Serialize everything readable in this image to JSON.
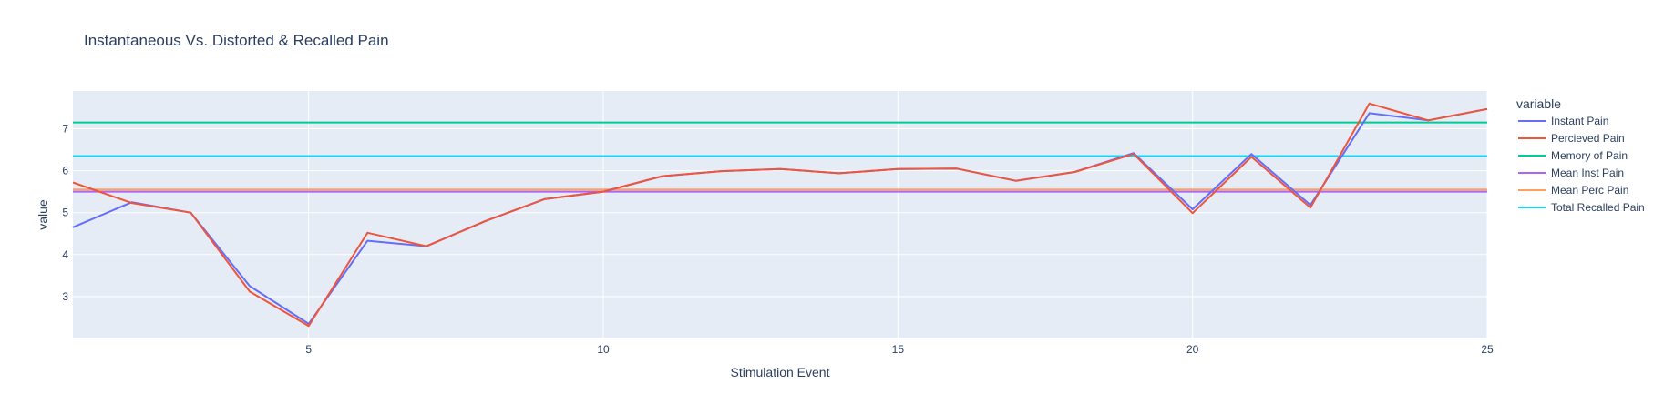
{
  "chart_data": {
    "type": "line",
    "title": "Instantaneous Vs. Distorted & Recalled Pain",
    "xlabel": "Stimulation Event",
    "ylabel": "value",
    "xlim": [
      1,
      25
    ],
    "ylim": [
      2,
      7.9
    ],
    "x_ticks": [
      5,
      10,
      15,
      20,
      25
    ],
    "y_ticks": [
      3,
      4,
      5,
      6,
      7
    ],
    "grid": true,
    "legend_title": "variable",
    "legend_position": "right",
    "x": [
      1,
      2,
      3,
      4,
      5,
      6,
      7,
      8,
      9,
      10,
      11,
      12,
      13,
      14,
      15,
      16,
      17,
      18,
      19,
      20,
      21,
      22,
      23,
      24,
      25
    ],
    "series": [
      {
        "name": "Instant Pain",
        "color": "#636efa",
        "values": [
          4.65,
          5.25,
          5.0,
          3.25,
          2.35,
          4.33,
          4.2,
          4.8,
          5.32,
          5.5,
          5.87,
          5.99,
          6.04,
          5.94,
          6.04,
          6.05,
          5.76,
          5.97,
          6.42,
          5.08,
          6.4,
          5.18,
          7.37,
          7.2,
          7.47
        ]
      },
      {
        "name": "Percieved Pain",
        "color": "#ef553b",
        "values": [
          5.72,
          5.23,
          5.0,
          3.12,
          2.3,
          4.52,
          4.2,
          4.8,
          5.32,
          5.5,
          5.87,
          5.99,
          6.04,
          5.94,
          6.04,
          6.05,
          5.76,
          5.97,
          6.4,
          4.99,
          6.33,
          5.12,
          7.6,
          7.2,
          7.47
        ]
      },
      {
        "name": "Memory of Pain",
        "color": "#00cc96",
        "values": [
          7.15,
          7.15,
          7.15,
          7.15,
          7.15,
          7.15,
          7.15,
          7.15,
          7.15,
          7.15,
          7.15,
          7.15,
          7.15,
          7.15,
          7.15,
          7.15,
          7.15,
          7.15,
          7.15,
          7.15,
          7.15,
          7.15,
          7.15,
          7.15,
          7.15
        ]
      },
      {
        "name": "Mean Inst Pain",
        "color": "#ab63fa",
        "values": [
          5.5,
          5.5,
          5.5,
          5.5,
          5.5,
          5.5,
          5.5,
          5.5,
          5.5,
          5.5,
          5.5,
          5.5,
          5.5,
          5.5,
          5.5,
          5.5,
          5.5,
          5.5,
          5.5,
          5.5,
          5.5,
          5.5,
          5.5,
          5.5,
          5.5
        ]
      },
      {
        "name": "Mean Perc Pain",
        "color": "#ffa15a",
        "values": [
          5.55,
          5.55,
          5.55,
          5.55,
          5.55,
          5.55,
          5.55,
          5.55,
          5.55,
          5.55,
          5.55,
          5.55,
          5.55,
          5.55,
          5.55,
          5.55,
          5.55,
          5.55,
          5.55,
          5.55,
          5.55,
          5.55,
          5.55,
          5.55,
          5.55
        ]
      },
      {
        "name": "Total Recalled Pain",
        "color": "#19d3f3",
        "values": [
          6.35,
          6.35,
          6.35,
          6.35,
          6.35,
          6.35,
          6.35,
          6.35,
          6.35,
          6.35,
          6.35,
          6.35,
          6.35,
          6.35,
          6.35,
          6.35,
          6.35,
          6.35,
          6.35,
          6.35,
          6.35,
          6.35,
          6.35,
          6.35,
          6.35
        ]
      }
    ],
    "colors": {
      "plot_background": "#e5ecf6",
      "grid": "#ffffff",
      "text": "#2a3f5f"
    }
  }
}
